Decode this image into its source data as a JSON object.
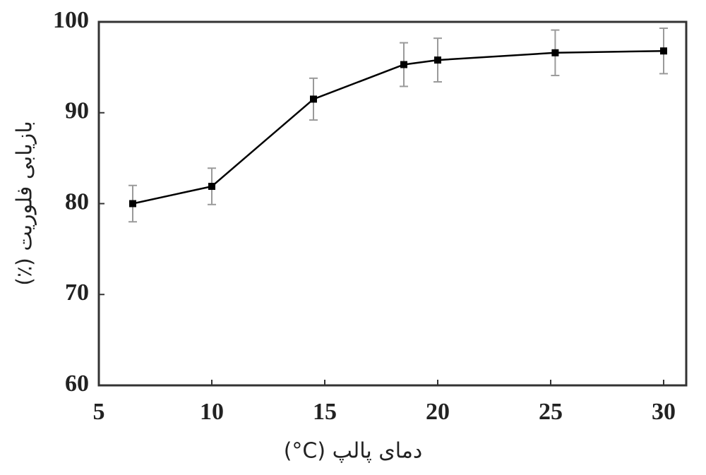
{
  "chart_data": {
    "type": "line",
    "x": [
      6.5,
      10,
      14.5,
      18.5,
      20,
      25.2,
      30
    ],
    "series": [
      {
        "color": "#000000",
        "values": [
          80.0,
          81.9,
          91.5,
          95.3,
          95.8,
          96.6,
          96.8
        ],
        "errors": [
          2,
          2,
          2.3,
          2.4,
          2.4,
          2.5,
          2.5
        ]
      }
    ],
    "error_color": "#9a9a9a",
    "xlim": [
      5,
      31
    ],
    "ylim": [
      60,
      100
    ],
    "xticks": [
      5,
      10,
      15,
      20,
      25,
      30
    ],
    "yticks": [
      60,
      70,
      80,
      90,
      100
    ],
    "xlabel": "دمای پالپ (C°)",
    "ylabel": "بازیابی فلوریت (٪)"
  }
}
